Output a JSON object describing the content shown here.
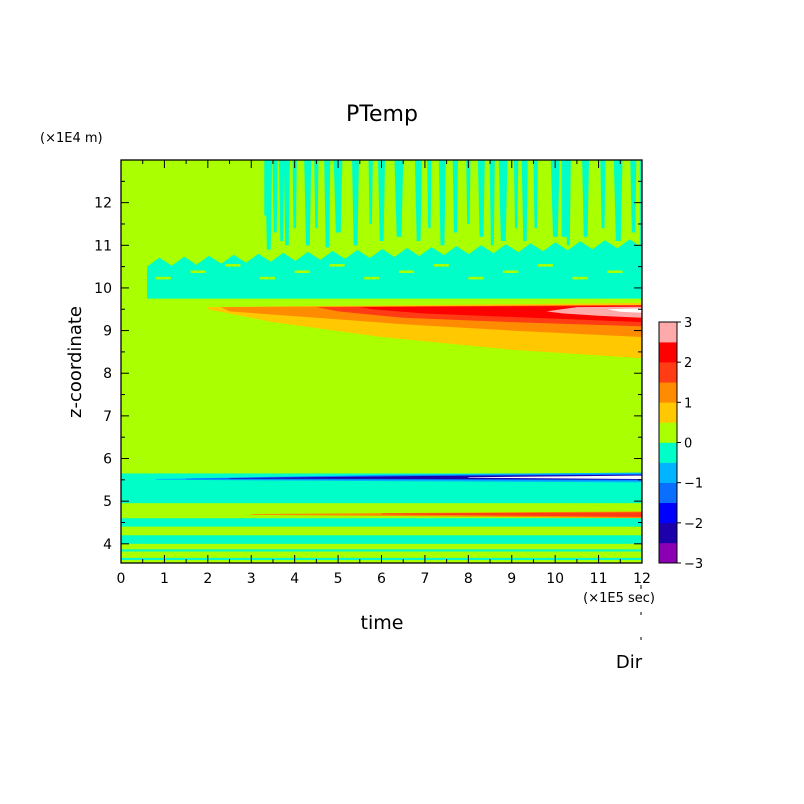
{
  "chart_data": {
    "type": "heatmap",
    "title": "PTemp",
    "xlabel": "time",
    "ylabel": "z-coordinate",
    "x_unit_label": "(×1E5 sec)",
    "y_unit_label": "(×1E4 m)",
    "footer_label": "Dir",
    "xlim": [
      0,
      12
    ],
    "ylim": [
      3.55,
      13
    ],
    "x_ticks": [
      "0",
      "1",
      "2",
      "3",
      "4",
      "5",
      "6",
      "7",
      "8",
      "9",
      "10",
      "11",
      "12"
    ],
    "y_ticks": [
      "4",
      "5",
      "6",
      "7",
      "8",
      "9",
      "10",
      "11",
      "12"
    ],
    "colorbar": {
      "ticks": [
        "−3",
        "−2",
        "−1",
        "0",
        "1",
        "2",
        "3"
      ],
      "levels": [
        {
          "from": -3.0,
          "to": -2.5,
          "color": "#8c00b4"
        },
        {
          "from": -2.5,
          "to": -2.0,
          "color": "#1e00aa"
        },
        {
          "from": -2.0,
          "to": -1.5,
          "color": "#0000ff"
        },
        {
          "from": -1.5,
          "to": -1.0,
          "color": "#0a6eff"
        },
        {
          "from": -1.0,
          "to": -0.5,
          "color": "#00b4ff"
        },
        {
          "from": -0.5,
          "to": 0.0,
          "color": "#00ffc8"
        },
        {
          "from": 0.0,
          "to": 0.5,
          "color": "#aaff00"
        },
        {
          "from": 0.5,
          "to": 1.0,
          "color": "#ffc800"
        },
        {
          "from": 1.0,
          "to": 1.5,
          "color": "#ff8c00"
        },
        {
          "from": 1.5,
          "to": 2.0,
          "color": "#ff3c14"
        },
        {
          "from": 2.0,
          "to": 2.5,
          "color": "#ff0000"
        },
        {
          "from": 2.5,
          "to": 3.0,
          "color": "#ffaaaa"
        }
      ]
    },
    "regions": [
      {
        "name": "background",
        "level": 0.25
      },
      {
        "name": "upper cyan layer",
        "z": [
          9.75,
          10.6
        ],
        "t": [
          0.6,
          12
        ],
        "level": -0.25
      },
      {
        "name": "stratospheric spikes",
        "z": [
          10.6,
          13
        ],
        "t": [
          3.3,
          12
        ],
        "level": -0.25
      },
      {
        "name": "warm band",
        "z": [
          8.3,
          9.6
        ],
        "t": [
          2,
          12
        ],
        "level": 0.75
      },
      {
        "name": "warm core",
        "z": [
          9.1,
          9.6
        ],
        "t": [
          5,
          12
        ],
        "level": 2.25
      },
      {
        "name": "warmest core",
        "z": [
          9.3,
          9.5
        ],
        "t": [
          9.8,
          12
        ],
        "level": 2.75
      },
      {
        "name": "cold layer",
        "z": [
          4.95,
          5.65
        ],
        "t": [
          0,
          12
        ],
        "level": -0.25
      },
      {
        "name": "cold core",
        "z": [
          5.47,
          5.65
        ],
        "t": [
          0.8,
          12
        ],
        "level": -1.75
      },
      {
        "name": "lower warm strip",
        "z": [
          4.6,
          4.76
        ],
        "t": [
          3,
          12
        ],
        "level": 1.25
      },
      {
        "name": "near-surface stripes",
        "z": [
          3.55,
          4.6
        ],
        "t": [
          0,
          12
        ],
        "level": 0.0
      }
    ]
  }
}
